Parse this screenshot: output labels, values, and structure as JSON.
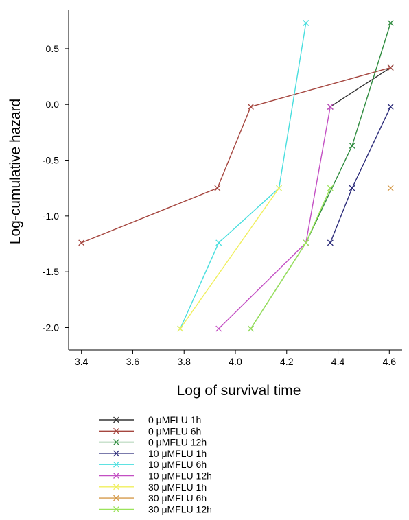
{
  "chart_data": {
    "type": "line",
    "title": "",
    "xlabel": "Log of survival time",
    "ylabel": "Log-cumulative hazard",
    "xlim": [
      3.35,
      4.65
    ],
    "ylim": [
      -2.2,
      0.85
    ],
    "x_ticks": [
      "3.4",
      "3.6",
      "3.8",
      "4.0",
      "4.2",
      "4.4",
      "4.6"
    ],
    "y_ticks": [
      "0.5",
      "0.0",
      "-0.5",
      "-1.0",
      "-1.5",
      "-2.0"
    ],
    "grid": false,
    "legend_position": "bottom-left",
    "series": [
      {
        "name": "0 μMFLU 1h",
        "color": "#333333",
        "x": [
          4.37,
          4.605
        ],
        "y": [
          -0.02,
          0.33
        ]
      },
      {
        "name": "0 μMFLU 6h",
        "color": "#a5463f",
        "x": [
          3.4,
          3.93,
          4.06,
          4.605
        ],
        "y": [
          -1.24,
          -0.75,
          -0.02,
          0.33
        ]
      },
      {
        "name": "0 μMFLU 12h",
        "color": "#2e8b3e",
        "x": [
          4.06,
          4.275,
          4.455,
          4.605
        ],
        "y": [
          -2.01,
          -1.24,
          -0.37,
          0.73
        ]
      },
      {
        "name": "10 μMFLU 1h",
        "color": "#2c2c7a",
        "x": [
          4.37,
          4.455,
          4.605
        ],
        "y": [
          -1.24,
          -0.75,
          -0.02
        ]
      },
      {
        "name": "10 μMFLU 6h",
        "color": "#48dede",
        "x": [
          3.785,
          3.935,
          4.17,
          4.275
        ],
        "y": [
          -2.01,
          -1.24,
          -0.75,
          0.73
        ]
      },
      {
        "name": "10 μMFLU 12h",
        "color": "#c34fc3",
        "x": [
          3.935,
          4.275,
          4.37
        ],
        "y": [
          -2.01,
          -1.24,
          -0.02
        ]
      },
      {
        "name": "30 μMFLU 1h",
        "color": "#f0ef5c",
        "x": [
          3.785,
          4.17
        ],
        "y": [
          -2.01,
          -0.75
        ]
      },
      {
        "name": "30 μMFLU 6h",
        "color": "#d59a4a",
        "x": [
          4.605
        ],
        "y": [
          -0.75
        ]
      },
      {
        "name": "30 μMFLU 12h",
        "color": "#9be35a",
        "x": [
          4.06,
          4.275,
          4.37
        ],
        "y": [
          -2.01,
          -1.24,
          -0.75
        ]
      }
    ]
  }
}
